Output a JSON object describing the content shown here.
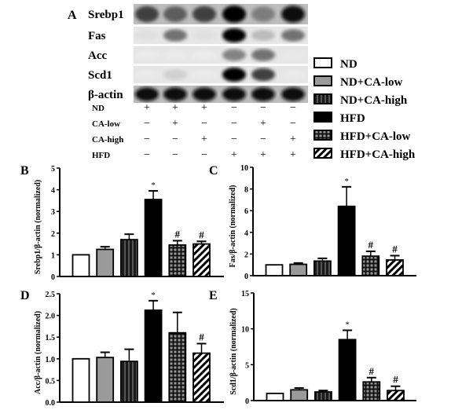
{
  "panel_labels": {
    "A": "A",
    "B": "B",
    "C": "C",
    "D": "D",
    "E": "E"
  },
  "blot": {
    "proteins": [
      "Srebp1",
      "Fas",
      "Acc",
      "Scd1",
      "β-actin"
    ],
    "band_intensity": [
      [
        0.75,
        0.65,
        0.75,
        1.0,
        0.55,
        0.95
      ],
      [
        0.15,
        0.6,
        0.15,
        1.0,
        0.35,
        0.6
      ],
      [
        0.05,
        0.05,
        0.03,
        0.55,
        0.6,
        0.08
      ],
      [
        0.05,
        0.25,
        0.05,
        1.0,
        0.75,
        0.05
      ],
      [
        0.95,
        0.95,
        0.95,
        0.95,
        0.95,
        0.95
      ]
    ],
    "treatments": [
      {
        "name": "ND",
        "signs": [
          "+",
          "+",
          "+",
          "−",
          "−",
          "−"
        ]
      },
      {
        "name": "CA-low",
        "signs": [
          "−",
          "+",
          "−",
          "−",
          "+",
          "−"
        ]
      },
      {
        "name": "CA-high",
        "signs": [
          "−",
          "−",
          "+",
          "−",
          "−",
          "+"
        ]
      },
      {
        "name": "HFD",
        "signs": [
          "−",
          "−",
          "−",
          "+",
          "+",
          "+"
        ]
      }
    ]
  },
  "legend": {
    "placement": "right of blot",
    "entries": [
      {
        "label": "ND",
        "pattern": "white"
      },
      {
        "label": "ND+CA-low",
        "pattern": "gray"
      },
      {
        "label": "ND+CA-high",
        "pattern": "vertical-stripes"
      },
      {
        "label": "HFD",
        "pattern": "black"
      },
      {
        "label": "HFD+CA-low",
        "pattern": "grid"
      },
      {
        "label": "HFD+CA-high",
        "pattern": "diagonal-stripes"
      }
    ]
  },
  "colors": {
    "axis": "#000000",
    "gray_fill": "#9a9a9a",
    "dark_fill": "#333333",
    "black_fill": "#000000"
  },
  "chart_data": [
    {
      "panel": "B",
      "type": "bar",
      "ylabel": "Srebp1/β-actin (normalized)",
      "ylim": [
        0,
        5
      ],
      "yticks": [
        "0",
        "1",
        "2",
        "3",
        "4",
        "5"
      ],
      "categories": [
        "ND",
        "ND+CA-low",
        "ND+CA-high",
        "HFD",
        "HFD+CA-low",
        "HFD+CA-high"
      ],
      "values": [
        1.0,
        1.25,
        1.7,
        3.55,
        1.45,
        1.5
      ],
      "errors": [
        0,
        0.12,
        0.25,
        0.4,
        0.2,
        0.12
      ],
      "annotations": [
        "",
        "",
        "",
        "*",
        "#",
        "#"
      ]
    },
    {
      "panel": "C",
      "type": "bar",
      "ylabel": "Fas/β-actin (normalized)",
      "ylim": [
        0,
        10
      ],
      "yticks": [
        "0",
        "2",
        "4",
        "6",
        "8",
        "10"
      ],
      "categories": [
        "ND",
        "ND+CA-low",
        "ND+CA-high",
        "HFD",
        "HFD+CA-low",
        "HFD+CA-high"
      ],
      "values": [
        1.0,
        1.05,
        1.35,
        6.4,
        1.8,
        1.45
      ],
      "errors": [
        0,
        0.12,
        0.25,
        1.8,
        0.45,
        0.4
      ],
      "annotations": [
        "",
        "",
        "",
        "*",
        "#",
        "#"
      ]
    },
    {
      "panel": "D",
      "type": "bar",
      "ylabel": "Acc/β-actin (normalized)",
      "ylim": [
        0,
        2.5
      ],
      "yticks": [
        "0.0",
        "0.5",
        "1.0",
        "1.5",
        "2.0",
        "2.5"
      ],
      "categories": [
        "ND",
        "ND+CA-low",
        "ND+CA-high",
        "HFD",
        "HFD+CA-low",
        "HFD+CA-high"
      ],
      "values": [
        1.0,
        1.03,
        0.94,
        2.12,
        1.6,
        1.13
      ],
      "errors": [
        0,
        0.12,
        0.28,
        0.22,
        0.47,
        0.22
      ],
      "annotations": [
        "",
        "",
        "",
        "*",
        "",
        "#"
      ]
    },
    {
      "panel": "E",
      "type": "bar",
      "ylabel": "Scd1/β-actin (normalized)",
      "ylim": [
        0,
        15
      ],
      "yticks": [
        "0",
        "5",
        "10",
        "15"
      ],
      "categories": [
        "ND",
        "ND+CA-low",
        "ND+CA-high",
        "HFD",
        "HFD+CA-low",
        "HFD+CA-high"
      ],
      "values": [
        1.0,
        1.5,
        1.2,
        8.5,
        2.6,
        1.4
      ],
      "errors": [
        0,
        0.25,
        0.2,
        1.3,
        0.6,
        0.6
      ],
      "annotations": [
        "",
        "",
        "",
        "*",
        "#",
        "#"
      ]
    }
  ]
}
